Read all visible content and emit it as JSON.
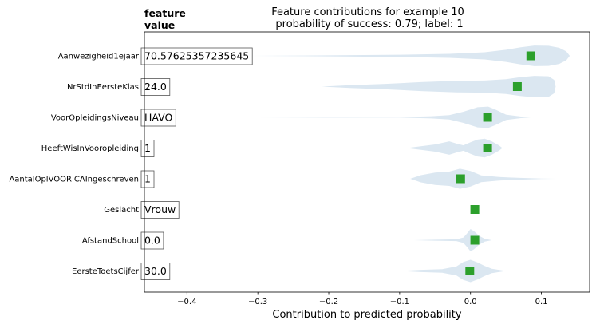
{
  "chart_data": {
    "type": "violin",
    "title": "Feature contributions for example 10",
    "subtitle": "probability of success: 0.79; label: 1",
    "feature_header_line1": "feature",
    "feature_header_line2": "value",
    "xlabel": "Contribution to predicted probability",
    "xlim": [
      -0.46,
      0.168
    ],
    "xticks": [
      -0.4,
      -0.3,
      -0.2,
      -0.1,
      0.0,
      0.1
    ],
    "xtick_labels": [
      "−0.4",
      "−0.3",
      "−0.2",
      "−0.1",
      "0.0",
      "0.1"
    ],
    "marker_color": "#2ca02c",
    "violin_color": "#dbe7f1",
    "features": [
      {
        "name": "Aanwezigheid1ejaar",
        "value": "70.57625357235645",
        "contribution": 0.085,
        "violin": [
          [
            -0.31,
            0.0
          ],
          [
            -0.2,
            0.02
          ],
          [
            -0.1,
            0.05
          ],
          [
            -0.03,
            0.09
          ],
          [
            0.02,
            0.16
          ],
          [
            0.05,
            0.27
          ],
          [
            0.07,
            0.38
          ],
          [
            0.09,
            0.46
          ],
          [
            0.11,
            0.45
          ],
          [
            0.125,
            0.36
          ],
          [
            0.135,
            0.2
          ],
          [
            0.14,
            0.0
          ]
        ]
      },
      {
        "name": "NrStdInEersteKlas",
        "value": "24.0",
        "contribution": 0.066,
        "violin": [
          [
            -0.21,
            0.0
          ],
          [
            -0.17,
            0.06
          ],
          [
            -0.12,
            0.12
          ],
          [
            -0.07,
            0.2
          ],
          [
            -0.02,
            0.26
          ],
          [
            0.02,
            0.27
          ],
          [
            0.05,
            0.33
          ],
          [
            0.07,
            0.42
          ],
          [
            0.09,
            0.48
          ],
          [
            0.11,
            0.46
          ],
          [
            0.118,
            0.3
          ],
          [
            0.12,
            0.0
          ]
        ]
      },
      {
        "name": "VoorOpleidingsNiveau",
        "value": "HAVO",
        "contribution": 0.024,
        "violin": [
          [
            -0.3,
            0.0
          ],
          [
            -0.2,
            0.015
          ],
          [
            -0.1,
            0.01
          ],
          [
            -0.055,
            0.05
          ],
          [
            -0.03,
            0.1
          ],
          [
            -0.01,
            0.25
          ],
          [
            0.01,
            0.45
          ],
          [
            0.025,
            0.48
          ],
          [
            0.035,
            0.35
          ],
          [
            0.05,
            0.12
          ],
          [
            0.07,
            0.04
          ],
          [
            0.085,
            0.0
          ]
        ]
      },
      {
        "name": "HeeftWisInVooropleiding",
        "value": "1",
        "contribution": 0.024,
        "violin": [
          [
            -0.09,
            0.0
          ],
          [
            -0.07,
            0.08
          ],
          [
            -0.05,
            0.16
          ],
          [
            -0.03,
            0.3
          ],
          [
            -0.02,
            0.2
          ],
          [
            -0.01,
            0.12
          ],
          [
            0.0,
            0.26
          ],
          [
            0.01,
            0.38
          ],
          [
            0.02,
            0.42
          ],
          [
            0.03,
            0.3
          ],
          [
            0.04,
            0.12
          ],
          [
            0.045,
            0.0
          ]
        ]
      },
      {
        "name": "AantalOplVOORICAIngeschreven",
        "value": "1",
        "contribution": -0.014,
        "violin": [
          [
            -0.085,
            0.0
          ],
          [
            -0.07,
            0.16
          ],
          [
            -0.05,
            0.28
          ],
          [
            -0.03,
            0.32
          ],
          [
            -0.015,
            0.45
          ],
          [
            0.0,
            0.35
          ],
          [
            0.015,
            0.15
          ],
          [
            0.04,
            0.08
          ],
          [
            0.07,
            0.04
          ],
          [
            0.1,
            0.01
          ],
          [
            0.12,
            0.0
          ]
        ]
      },
      {
        "name": "Geslacht",
        "value": "Vrouw",
        "contribution": 0.006,
        "violin": [
          [
            0.0,
            0.0
          ],
          [
            0.003,
            0.04
          ],
          [
            0.006,
            0.06
          ],
          [
            0.009,
            0.04
          ],
          [
            0.012,
            0.0
          ]
        ]
      },
      {
        "name": "AfstandSchool",
        "value": "0.0",
        "contribution": 0.006,
        "violin": [
          [
            -0.08,
            0.0
          ],
          [
            -0.05,
            0.02
          ],
          [
            -0.02,
            0.04
          ],
          [
            -0.01,
            0.12
          ],
          [
            -0.005,
            0.3
          ],
          [
            0.0,
            0.5
          ],
          [
            0.005,
            0.4
          ],
          [
            0.012,
            0.2
          ],
          [
            0.02,
            0.06
          ],
          [
            0.03,
            0.0
          ]
        ]
      },
      {
        "name": "EersteToetsCijfer",
        "value": "30.0",
        "contribution": -0.001,
        "violin": [
          [
            -0.1,
            0.0
          ],
          [
            -0.07,
            0.05
          ],
          [
            -0.04,
            0.08
          ],
          [
            -0.02,
            0.2
          ],
          [
            -0.01,
            0.4
          ],
          [
            0.0,
            0.5
          ],
          [
            0.01,
            0.38
          ],
          [
            0.02,
            0.22
          ],
          [
            0.03,
            0.1
          ],
          [
            0.05,
            0.0
          ]
        ]
      }
    ]
  }
}
